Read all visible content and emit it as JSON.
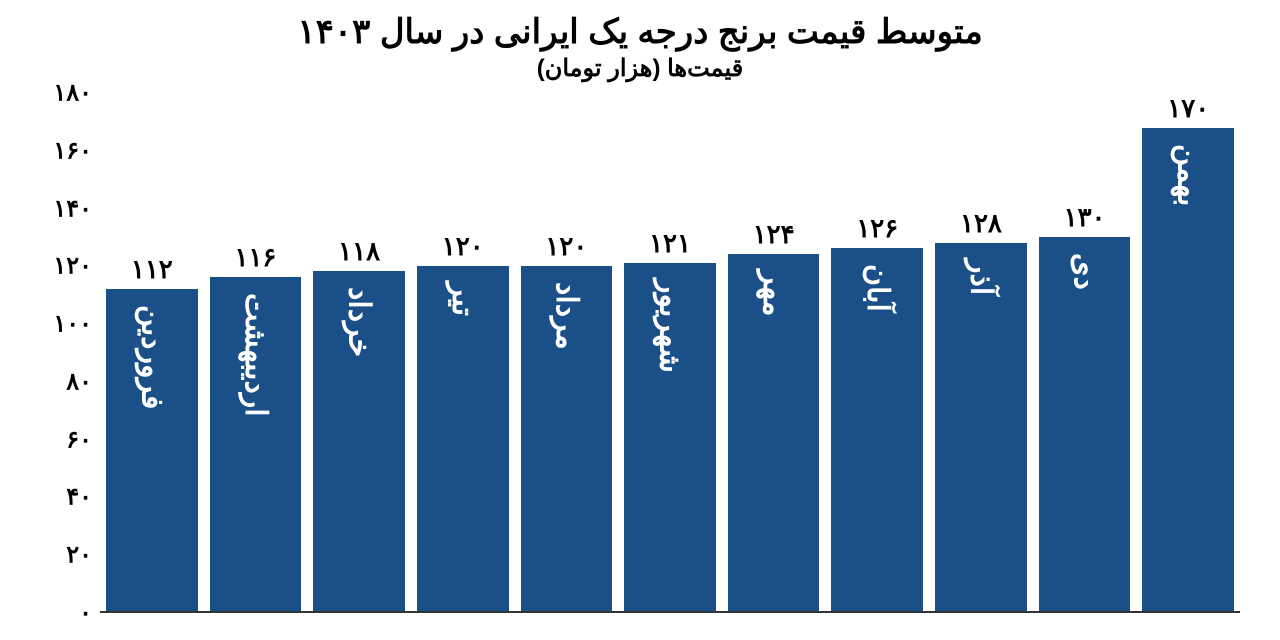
{
  "chart": {
    "type": "bar",
    "title": "متوسط قیمت برنج درجه یک ایرانی در سال ۱۴۰۳",
    "subtitle": "قیمت‌ها (هزار تومان)",
    "title_fontsize": 34,
    "subtitle_fontsize": 24,
    "background_color": "#ffffff",
    "text_color": "#000000",
    "bar_color": "#1b4f87",
    "bar_label_color": "#ffffff",
    "y_axis": {
      "min": 0,
      "max": 180,
      "step": 20,
      "ticks": [
        "۰",
        "۲۰",
        "۴۰",
        "۶۰",
        "۸۰",
        "۱۰۰",
        "۱۲۰",
        "۱۴۰",
        "۱۶۰",
        "۱۸۰"
      ],
      "tick_values": [
        0,
        20,
        40,
        60,
        80,
        100,
        120,
        140,
        160,
        180
      ],
      "tick_fontsize": 24
    },
    "categories": [
      "فروردین",
      "اردیبهشت",
      "خرداد",
      "تیر",
      "مرداد",
      "شهریور",
      "مهر",
      "آبان",
      "آذر",
      "دی",
      "بهمن"
    ],
    "values": [
      112,
      116,
      118,
      120,
      120,
      121,
      124,
      126,
      128,
      130,
      170
    ],
    "value_labels": [
      "۱۱۲",
      "۱۱۶",
      "۱۱۸",
      "۱۲۰",
      "۱۲۰",
      "۱۲۱",
      "۱۲۴",
      "۱۲۶",
      "۱۲۸",
      "۱۳۰",
      "۱۷۰"
    ],
    "value_fontsize": 26,
    "category_fontsize": 30,
    "bar_width_ratio": 0.88
  }
}
